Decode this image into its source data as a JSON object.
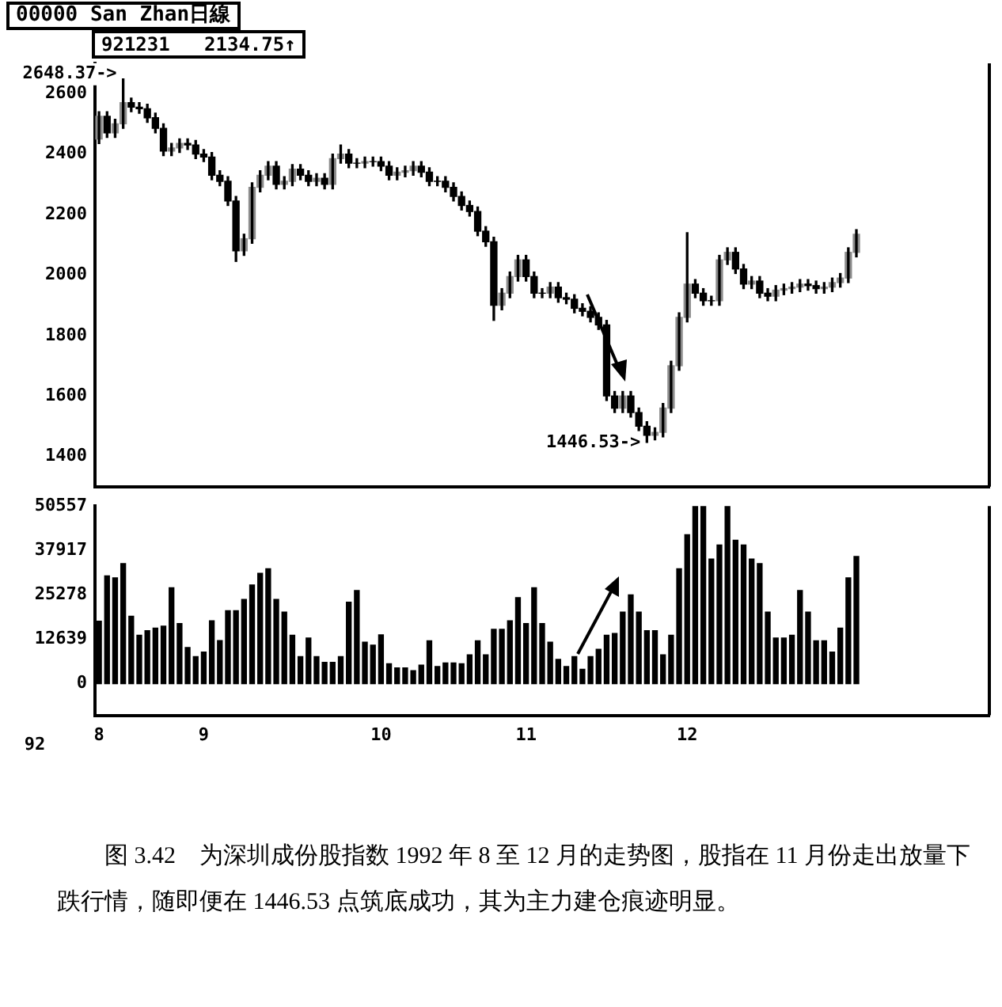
{
  "chart_data": [
    {
      "type": "candlestick",
      "title": "00000 San Zhan日線",
      "color": "#000000",
      "colors": [
        "#8c8c8c",
        "#000000",
        "#8c8c8c",
        "#8c8c8c",
        "#000000",
        "#000000",
        "#000000",
        "#000000",
        "#000000",
        "#8c8c8c",
        "#8c8c8c",
        "#000000",
        "#000000",
        "#000000",
        "#000000",
        "#000000",
        "#000000",
        "#000000",
        "#8c8c8c",
        "#8c8c8c",
        "#8c8c8c",
        "#8c8c8c",
        "#000000",
        "#8c8c8c",
        "#8c8c8c",
        "#000000",
        "#000000",
        "#8c8c8c",
        "#000000",
        "#8c8c8c",
        "#8c8c8c",
        "#000000",
        "#000000",
        "#8c8c8c",
        "#000000",
        "#000000",
        "#000000",
        "#8c8c8c",
        "#8c8c8c",
        "#8c8c8c",
        "#000000",
        "#000000",
        "#000000",
        "#000000",
        "#000000",
        "#000000",
        "#000000",
        "#000000",
        "#000000",
        "#000000",
        "#8c8c8c",
        "#8c8c8c",
        "#8c8c8c",
        "#000000",
        "#000000",
        "#000000",
        "#8c8c8c",
        "#000000",
        "#000000",
        "#000000",
        "#000000",
        "#000000",
        "#000000",
        "#000000",
        "#000000",
        "#8c8c8c",
        "#000000",
        "#000000",
        "#000000",
        "#8c8c8c",
        "#8c8c8c",
        "#8c8c8c",
        "#8c8c8c",
        "#8c8c8c",
        "#000000",
        "#000000",
        "#000000",
        "#8c8c8c",
        "#8c8c8c",
        "#000000",
        "#000000",
        "#8c8c8c",
        "#000000",
        "#000000",
        "#8c8c8c",
        "#8c8c8c",
        "#8c8c8c",
        "#8c8c8c",
        "#000000",
        "#000000",
        "#8c8c8c",
        "#8c8c8c",
        "#8c8c8c",
        "#8c8c8c",
        "#8c8c8c",
        null,
        null,
        null,
        null,
        null,
        null,
        null,
        null,
        null,
        null,
        null,
        null,
        null,
        null,
        null,
        null
      ],
      "ylim": [
        1300,
        2700
      ],
      "yticks": [
        1400,
        1600,
        1800,
        2000,
        2200,
        2400,
        2600
      ],
      "tick_labels": "y",
      "categories": [
        "8",
        null,
        null,
        null,
        null,
        null,
        null,
        null,
        null,
        null,
        null,
        null,
        null,
        "9",
        null,
        null,
        null,
        null,
        null,
        null,
        null,
        null,
        null,
        null,
        null,
        null,
        null,
        null,
        null,
        null,
        null,
        null,
        null,
        null,
        null,
        "10",
        null,
        null,
        null,
        null,
        null,
        null,
        null,
        null,
        null,
        null,
        null,
        null,
        null,
        null,
        null,
        null,
        null,
        "11",
        null,
        null,
        null,
        null,
        null,
        null,
        null,
        null,
        null,
        null,
        null,
        null,
        null,
        null,
        null,
        null,
        null,
        null,
        null,
        "12",
        null,
        null,
        null,
        null,
        null,
        null,
        null,
        null,
        null,
        null,
        null,
        null,
        null,
        null,
        null,
        null,
        null,
        null,
        null,
        null,
        null,
        null,
        null,
        null,
        null,
        null,
        null,
        null,
        null,
        null,
        null,
        null,
        null,
        null,
        null,
        null,
        null
      ],
      "ohlc": [
        [
          2450,
          2540,
          2435,
          2525
        ],
        [
          2525,
          2540,
          2455,
          2470
        ],
        [
          2470,
          2515,
          2455,
          2500
        ],
        [
          2500,
          2648.37,
          2485,
          2570
        ],
        [
          2570,
          2585,
          2540,
          2555
        ],
        [
          2555,
          2570,
          2535,
          2550
        ],
        [
          2550,
          2565,
          2505,
          2520
        ],
        [
          2520,
          2535,
          2470,
          2485
        ],
        [
          2485,
          2500,
          2395,
          2410
        ],
        [
          2410,
          2435,
          2395,
          2420
        ],
        [
          2420,
          2450,
          2405,
          2435
        ],
        [
          2435,
          2450,
          2415,
          2430
        ],
        [
          2430,
          2445,
          2385,
          2400
        ],
        [
          2400,
          2415,
          2375,
          2390
        ],
        [
          2390,
          2405,
          2315,
          2330
        ],
        [
          2330,
          2345,
          2295,
          2310
        ],
        [
          2310,
          2325,
          2230,
          2245
        ],
        [
          2245,
          2260,
          2045,
          2080
        ],
        [
          2080,
          2135,
          2065,
          2120
        ],
        [
          2120,
          2305,
          2105,
          2290
        ],
        [
          2290,
          2345,
          2275,
          2330
        ],
        [
          2330,
          2375,
          2315,
          2360
        ],
        [
          2360,
          2375,
          2285,
          2300
        ],
        [
          2300,
          2325,
          2285,
          2310
        ],
        [
          2310,
          2365,
          2295,
          2350
        ],
        [
          2350,
          2365,
          2315,
          2330
        ],
        [
          2330,
          2345,
          2295,
          2310
        ],
        [
          2310,
          2335,
          2295,
          2320
        ],
        [
          2320,
          2335,
          2285,
          2300
        ],
        [
          2300,
          2400,
          2285,
          2385
        ],
        [
          2385,
          2430,
          2370,
          2400
        ],
        [
          2400,
          2415,
          2355,
          2370
        ],
        [
          2370,
          2385,
          2355,
          2370
        ],
        [
          2370,
          2390,
          2355,
          2375
        ],
        [
          2375,
          2390,
          2360,
          2375
        ],
        [
          2375,
          2390,
          2345,
          2360
        ],
        [
          2360,
          2375,
          2315,
          2330
        ],
        [
          2330,
          2355,
          2315,
          2340
        ],
        [
          2340,
          2360,
          2325,
          2345
        ],
        [
          2345,
          2375,
          2330,
          2360
        ],
        [
          2360,
          2375,
          2325,
          2340
        ],
        [
          2340,
          2355,
          2295,
          2310
        ],
        [
          2310,
          2325,
          2295,
          2310
        ],
        [
          2310,
          2325,
          2275,
          2290
        ],
        [
          2290,
          2305,
          2245,
          2260
        ],
        [
          2260,
          2275,
          2215,
          2230
        ],
        [
          2230,
          2245,
          2195,
          2210
        ],
        [
          2210,
          2225,
          2130,
          2145
        ],
        [
          2145,
          2160,
          2095,
          2110
        ],
        [
          2110,
          2125,
          1850,
          1900
        ],
        [
          1900,
          1955,
          1885,
          1940
        ],
        [
          1940,
          2010,
          1925,
          1995
        ],
        [
          1995,
          2065,
          1980,
          2050
        ],
        [
          2050,
          2065,
          1980,
          1995
        ],
        [
          1995,
          2010,
          1925,
          1940
        ],
        [
          1940,
          1955,
          1925,
          1940
        ],
        [
          1940,
          1975,
          1925,
          1960
        ],
        [
          1960,
          1975,
          1910,
          1925
        ],
        [
          1925,
          1940,
          1905,
          1920
        ],
        [
          1920,
          1935,
          1875,
          1890
        ],
        [
          1890,
          1905,
          1865,
          1880
        ],
        [
          1880,
          1895,
          1845,
          1860
        ],
        [
          1860,
          1875,
          1820,
          1835
        ],
        [
          1835,
          1850,
          1585,
          1600
        ],
        [
          1600,
          1615,
          1545,
          1560
        ],
        [
          1560,
          1615,
          1545,
          1600
        ],
        [
          1600,
          1615,
          1530,
          1545
        ],
        [
          1545,
          1560,
          1485,
          1500
        ],
        [
          1500,
          1515,
          1446.53,
          1470
        ],
        [
          1470,
          1495,
          1455,
          1480
        ],
        [
          1480,
          1575,
          1465,
          1560
        ],
        [
          1560,
          1715,
          1545,
          1700
        ],
        [
          1700,
          1875,
          1685,
          1860
        ],
        [
          1860,
          2140,
          1845,
          1970
        ],
        [
          1970,
          1985,
          1925,
          1940
        ],
        [
          1940,
          1955,
          1900,
          1915
        ],
        [
          1915,
          1930,
          1900,
          1915
        ],
        [
          1915,
          2065,
          1900,
          2050
        ],
        [
          2050,
          2090,
          2035,
          2075
        ],
        [
          2075,
          2090,
          2005,
          2020
        ],
        [
          2020,
          2035,
          1955,
          1970
        ],
        [
          1970,
          1995,
          1955,
          1980
        ],
        [
          1980,
          1995,
          1925,
          1940
        ],
        [
          1940,
          1955,
          1915,
          1930
        ],
        [
          1930,
          1965,
          1915,
          1950
        ],
        [
          1950,
          1970,
          1935,
          1955
        ],
        [
          1955,
          1975,
          1940,
          1960
        ],
        [
          1960,
          1985,
          1945,
          1970
        ],
        [
          1970,
          1985,
          1950,
          1965
        ],
        [
          1965,
          1980,
          1940,
          1955
        ],
        [
          1955,
          1975,
          1940,
          1960
        ],
        [
          1960,
          1990,
          1945,
          1975
        ],
        [
          1975,
          2005,
          1960,
          1990
        ],
        [
          1990,
          2090,
          1975,
          2075
        ],
        [
          2075,
          2150,
          2060,
          2134.75
        ],
        null,
        null,
        null,
        null,
        null,
        null,
        null,
        null,
        null,
        null,
        null,
        null,
        null,
        null,
        null,
        null
      ],
      "annotations": [
        "921231   2134.75↑",
        "2648.37->",
        "1446.53->"
      ]
    },
    {
      "type": "bar",
      "color": "#000000",
      "ylim": [
        -9000,
        50557
      ],
      "yticks": [
        0,
        12639,
        25278,
        37917,
        50557
      ],
      "categories": [
        "8",
        null,
        null,
        null,
        null,
        null,
        null,
        null,
        null,
        null,
        null,
        null,
        null,
        "9",
        null,
        null,
        null,
        null,
        null,
        null,
        null,
        null,
        null,
        null,
        null,
        null,
        null,
        null,
        null,
        null,
        null,
        null,
        null,
        null,
        null,
        "10",
        null,
        null,
        null,
        null,
        null,
        null,
        null,
        null,
        null,
        null,
        null,
        null,
        null,
        null,
        null,
        null,
        null,
        "11",
        null,
        null,
        null,
        null,
        null,
        null,
        null,
        null,
        null,
        null,
        null,
        null,
        null,
        null,
        null,
        null,
        null,
        null,
        null,
        "12",
        null,
        null,
        null,
        null,
        null,
        null,
        null,
        null,
        null,
        null,
        null,
        null,
        null,
        null,
        null,
        null,
        null,
        null,
        null,
        null,
        null,
        null,
        null,
        null,
        null,
        null,
        null,
        null,
        null,
        null,
        null,
        null,
        null,
        null,
        null,
        null,
        null
      ],
      "values": [
        17800,
        30700,
        30100,
        34200,
        19200,
        13800,
        15100,
        15800,
        16400,
        27300,
        17100,
        10300,
        7700,
        9000,
        17900,
        12300,
        20800,
        20800,
        24000,
        28100,
        31400,
        32700,
        24000,
        20400,
        13800,
        7700,
        13000,
        7700,
        6100,
        6100,
        7700,
        23200,
        26500,
        11800,
        11000,
        13900,
        5700,
        4500,
        4500,
        3700,
        5300,
        12200,
        4900,
        5900,
        5900,
        5700,
        8200,
        12200,
        8200,
        15500,
        15500,
        17900,
        24500,
        17100,
        27300,
        17100,
        11800,
        6900,
        4900,
        7700,
        4100,
        7700,
        9800,
        13800,
        14300,
        20400,
        25300,
        20400,
        15100,
        15100,
        8200,
        13800,
        32700,
        42400,
        50500,
        50500,
        35500,
        39500,
        50500,
        40800,
        39500,
        35500,
        34200,
        20400,
        13000,
        13000,
        13800,
        26500,
        20400,
        12200,
        12200,
        9000,
        15800,
        30100,
        36200,
        null,
        null,
        null,
        null,
        null,
        null,
        null,
        null,
        null,
        null,
        null,
        null,
        null,
        null,
        null,
        null
      ],
      "annotations": [
        "92",
        "图 3.42　为深圳成份股指数 1992 年 8 至 12 月的走势图，股指在 11 月份走出放量下跌行情，随即便在 1446.53 点筑底成功，其为主力建仓痕迹明显。"
      ]
    }
  ]
}
